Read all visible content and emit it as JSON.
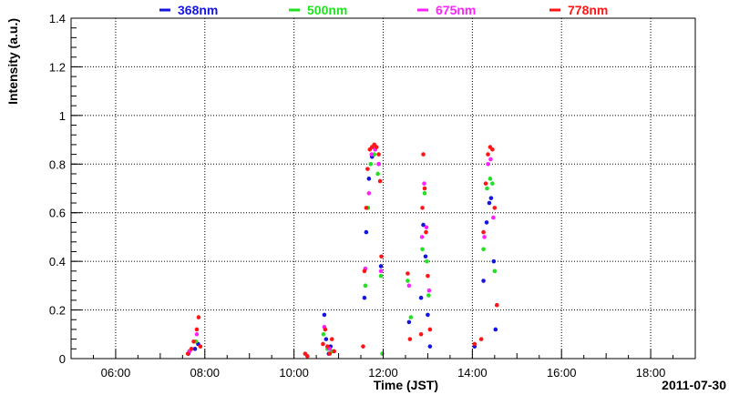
{
  "chart_data": {
    "type": "scatter",
    "title": "",
    "xlabel": "Time (JST)",
    "ylabel": "Intensity (a.u.)",
    "date_label": "2011-07-30",
    "x_unit": "hours (JST)",
    "xlim": [
      5.0,
      19.0
    ],
    "ylim": [
      0,
      1.4
    ],
    "x_ticks": [
      {
        "value": 6,
        "label": "06:00"
      },
      {
        "value": 8,
        "label": "08:00"
      },
      {
        "value": 10,
        "label": "10:00"
      },
      {
        "value": 12,
        "label": "12:00"
      },
      {
        "value": 14,
        "label": "14:00"
      },
      {
        "value": 16,
        "label": "16:00"
      },
      {
        "value": 18,
        "label": "18:00"
      }
    ],
    "y_ticks": [
      {
        "value": 0,
        "label": "0"
      },
      {
        "value": 0.2,
        "label": "0.2"
      },
      {
        "value": 0.4,
        "label": "0.4"
      },
      {
        "value": 0.6,
        "label": "0.6"
      },
      {
        "value": 0.8,
        "label": "0.8"
      },
      {
        "value": 1.0,
        "label": "1"
      },
      {
        "value": 1.2,
        "label": "1.2"
      },
      {
        "value": 1.4,
        "label": "1.4"
      }
    ],
    "grid": true,
    "legend_position": "top",
    "series": [
      {
        "name": "368nm",
        "color": "#1515e0",
        "points": [
          [
            7.63,
            0.02
          ],
          [
            7.78,
            0.04
          ],
          [
            7.85,
            0.06
          ],
          [
            10.68,
            0.18
          ],
          [
            10.72,
            0.08
          ],
          [
            10.78,
            0.02
          ],
          [
            10.82,
            0.05
          ],
          [
            11.58,
            0.25
          ],
          [
            11.62,
            0.52
          ],
          [
            11.68,
            0.74
          ],
          [
            11.75,
            0.83
          ],
          [
            11.82,
            0.86
          ],
          [
            11.9,
            0.8
          ],
          [
            11.95,
            0.38
          ],
          [
            12.58,
            0.15
          ],
          [
            12.85,
            0.25
          ],
          [
            12.9,
            0.55
          ],
          [
            12.95,
            0.42
          ],
          [
            13.0,
            0.18
          ],
          [
            13.05,
            0.05
          ],
          [
            14.05,
            0.05
          ],
          [
            14.25,
            0.32
          ],
          [
            14.32,
            0.56
          ],
          [
            14.38,
            0.64
          ],
          [
            14.42,
            0.66
          ],
          [
            14.48,
            0.4
          ],
          [
            14.52,
            0.12
          ]
        ]
      },
      {
        "name": "500nm",
        "color": "#22e022",
        "points": [
          [
            7.65,
            0.03
          ],
          [
            7.8,
            0.07
          ],
          [
            10.66,
            0.1
          ],
          [
            10.75,
            0.04
          ],
          [
            10.85,
            0.03
          ],
          [
            11.6,
            0.3
          ],
          [
            11.66,
            0.62
          ],
          [
            11.72,
            0.8
          ],
          [
            11.8,
            0.84
          ],
          [
            11.88,
            0.76
          ],
          [
            11.95,
            0.34
          ],
          [
            11.98,
            0.02
          ],
          [
            12.55,
            0.32
          ],
          [
            12.62,
            0.17
          ],
          [
            12.88,
            0.45
          ],
          [
            12.93,
            0.68
          ],
          [
            12.98,
            0.4
          ],
          [
            13.02,
            0.26
          ],
          [
            14.25,
            0.45
          ],
          [
            14.33,
            0.7
          ],
          [
            14.4,
            0.74
          ],
          [
            14.45,
            0.72
          ],
          [
            14.5,
            0.36
          ]
        ]
      },
      {
        "name": "675nm",
        "color": "#ff22ff",
        "points": [
          [
            7.66,
            0.03
          ],
          [
            7.82,
            0.1
          ],
          [
            10.68,
            0.13
          ],
          [
            10.8,
            0.04
          ],
          [
            11.6,
            0.37
          ],
          [
            11.68,
            0.68
          ],
          [
            11.74,
            0.84
          ],
          [
            11.82,
            0.86
          ],
          [
            11.9,
            0.8
          ],
          [
            11.95,
            0.36
          ],
          [
            12.58,
            0.3
          ],
          [
            12.87,
            0.5
          ],
          [
            12.92,
            0.72
          ],
          [
            12.97,
            0.54
          ],
          [
            13.03,
            0.28
          ],
          [
            14.27,
            0.5
          ],
          [
            14.35,
            0.8
          ],
          [
            14.41,
            0.82
          ],
          [
            14.47,
            0.58
          ]
        ]
      },
      {
        "name": "778nm",
        "color": "#ff1515",
        "points": [
          [
            7.62,
            0.02
          ],
          [
            7.7,
            0.04
          ],
          [
            7.75,
            0.07
          ],
          [
            7.82,
            0.12
          ],
          [
            7.86,
            0.17
          ],
          [
            7.9,
            0.05
          ],
          [
            10.25,
            0.02
          ],
          [
            10.3,
            0.01
          ],
          [
            10.65,
            0.06
          ],
          [
            10.7,
            0.12
          ],
          [
            10.75,
            0.05
          ],
          [
            10.8,
            0.02
          ],
          [
            10.85,
            0.08
          ],
          [
            10.9,
            0.03
          ],
          [
            11.55,
            0.05
          ],
          [
            11.58,
            0.36
          ],
          [
            11.62,
            0.62
          ],
          [
            11.65,
            0.78
          ],
          [
            11.7,
            0.86
          ],
          [
            11.75,
            0.87
          ],
          [
            11.8,
            0.88
          ],
          [
            11.85,
            0.87
          ],
          [
            11.9,
            0.84
          ],
          [
            11.93,
            0.73
          ],
          [
            11.96,
            0.42
          ],
          [
            12.55,
            0.35
          ],
          [
            12.6,
            0.08
          ],
          [
            12.85,
            0.1
          ],
          [
            12.88,
            0.62
          ],
          [
            12.9,
            0.84
          ],
          [
            12.93,
            0.7
          ],
          [
            12.96,
            0.52
          ],
          [
            13.0,
            0.34
          ],
          [
            13.05,
            0.12
          ],
          [
            14.05,
            0.06
          ],
          [
            14.2,
            0.08
          ],
          [
            14.25,
            0.52
          ],
          [
            14.3,
            0.72
          ],
          [
            14.35,
            0.84
          ],
          [
            14.4,
            0.87
          ],
          [
            14.45,
            0.86
          ],
          [
            14.5,
            0.62
          ],
          [
            14.55,
            0.22
          ]
        ]
      }
    ]
  }
}
